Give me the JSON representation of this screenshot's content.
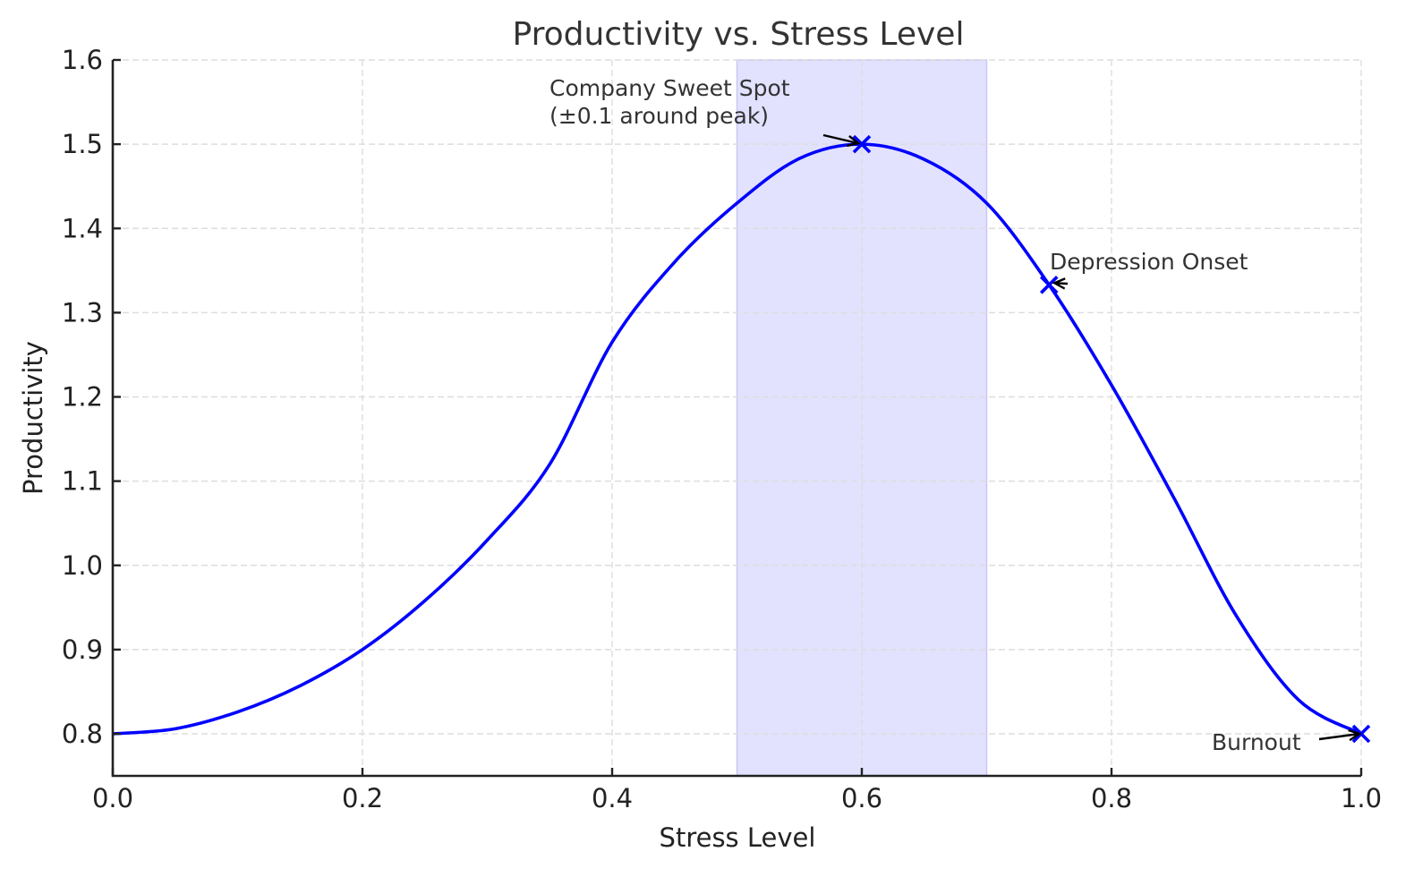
{
  "chart_data": {
    "type": "line",
    "title": "Productivity vs. Stress Level",
    "xlabel": "Stress Level",
    "ylabel": "Productivity",
    "xlim": [
      0.0,
      1.0
    ],
    "ylim": [
      0.75,
      1.6
    ],
    "grid": true,
    "legend": null,
    "x_ticks": [
      "0.0",
      "0.2",
      "0.4",
      "0.6",
      "0.8",
      "1.0"
    ],
    "y_ticks": [
      "0.8",
      "0.9",
      "1.0",
      "1.1",
      "1.2",
      "1.3",
      "1.4",
      "1.5",
      "1.6"
    ],
    "series": [
      {
        "name": "Productivity",
        "color": "#0000ff",
        "x": [
          0.0,
          0.05,
          0.1,
          0.15,
          0.2,
          0.25,
          0.3,
          0.35,
          0.4,
          0.45,
          0.5,
          0.55,
          0.6,
          0.65,
          0.7,
          0.75,
          0.8,
          0.85,
          0.9,
          0.95,
          1.0
        ],
        "y": [
          0.8,
          0.806,
          0.826,
          0.857,
          0.9,
          0.958,
          1.03,
          1.12,
          1.265,
          1.36,
          1.43,
          1.483,
          1.5,
          1.482,
          1.43,
          1.333,
          1.214,
          1.08,
          0.94,
          0.84,
          0.8
        ]
      }
    ],
    "shaded_region": {
      "x_start": 0.5,
      "x_end": 0.7,
      "color": "#e2e2ff",
      "edge_color": "#c8c8f5"
    },
    "markers": [
      {
        "x": 0.6,
        "y": 1.5,
        "symbol": "x",
        "color": "#0000ff"
      },
      {
        "x": 0.75,
        "y": 1.333,
        "symbol": "x",
        "color": "#0000ff"
      },
      {
        "x": 1.0,
        "y": 0.8,
        "symbol": "x",
        "color": "#0000ff"
      }
    ],
    "annotations": [
      {
        "text_lines": [
          "Company Sweet Spot",
          "(±0.1 around peak)"
        ],
        "point": [
          0.6,
          1.5
        ],
        "text_pos": [
          0.35,
          1.53
        ]
      },
      {
        "text_lines": [
          "Depression Onset"
        ],
        "point": [
          0.75,
          1.333
        ],
        "text_pos": [
          0.75,
          1.35
        ]
      },
      {
        "text_lines": [
          "Burnout"
        ],
        "point": [
          1.0,
          0.8
        ],
        "text_pos": [
          0.88,
          0.79
        ]
      }
    ]
  }
}
